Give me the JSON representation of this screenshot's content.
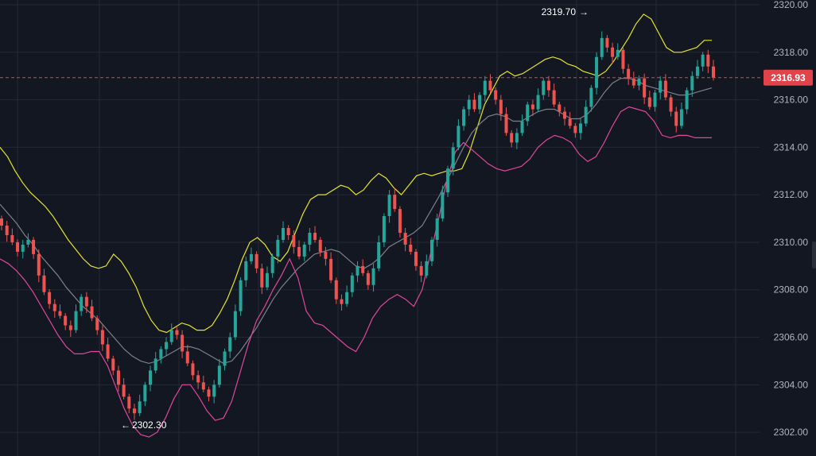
{
  "chart_data": {
    "type": "candlestick",
    "title": "",
    "xlabel": "",
    "ylabel": "",
    "ylim": [
      2301.0,
      2320.2
    ],
    "y_ticks": [
      "2320.00",
      "2318.00",
      "2316.00",
      "2314.00",
      "2312.00",
      "2310.00",
      "2308.00",
      "2306.00",
      "2304.00",
      "2302.00"
    ],
    "y_tick_values": [
      2320,
      2318,
      2316,
      2314,
      2312,
      2310,
      2308,
      2306,
      2304,
      2302
    ],
    "current_price": 2316.93,
    "current_price_label": "2316.93",
    "annotations": [
      {
        "label": "2319.70",
        "value": 2319.7,
        "arrow": "→",
        "side": "left"
      },
      {
        "label": "2302.30",
        "value": 2302.3,
        "arrow": "←",
        "side": "right"
      }
    ],
    "candles_close": [
      2310.7,
      2310.3,
      2310.0,
      2309.6,
      2309.9,
      2310.1,
      2309.5,
      2308.6,
      2307.9,
      2307.4,
      2307.1,
      2306.9,
      2306.5,
      2306.3,
      2307.1,
      2307.7,
      2307.3,
      2306.8,
      2306.3,
      2305.7,
      2305.1,
      2304.6,
      2304.0,
      2303.5,
      2303.0,
      2302.8,
      2303.3,
      2304.0,
      2304.6,
      2305.1,
      2305.5,
      2305.8,
      2306.3,
      2306.1,
      2305.4,
      2304.9,
      2304.4,
      2304.1,
      2303.8,
      2303.5,
      2304.0,
      2304.8,
      2305.4,
      2306.0,
      2307.1,
      2308.4,
      2309.2,
      2309.5,
      2308.9,
      2308.1,
      2308.7,
      2309.4,
      2310.1,
      2310.6,
      2310.3,
      2309.8,
      2309.4,
      2309.9,
      2310.4,
      2310.1,
      2309.6,
      2309.3,
      2308.4,
      2307.6,
      2307.4,
      2307.9,
      2308.6,
      2309.0,
      2308.7,
      2308.2,
      2308.9,
      2310.0,
      2311.1,
      2312.0,
      2311.4,
      2310.4,
      2309.9,
      2309.6,
      2309.0,
      2308.6,
      2309.2,
      2310.1,
      2311.0,
      2312.1,
      2313.1,
      2314.0,
      2314.9,
      2315.6,
      2316.0,
      2315.6,
      2316.2,
      2316.8,
      2316.4,
      2316.0,
      2315.4,
      2314.6,
      2314.2,
      2314.6,
      2315.1,
      2315.8,
      2315.6,
      2316.2,
      2316.8,
      2316.4,
      2315.8,
      2315.5,
      2315.2,
      2314.9,
      2314.6,
      2315.0,
      2315.7,
      2316.5,
      2317.8,
      2318.6,
      2318.2,
      2317.8,
      2318.1,
      2317.3,
      2316.9,
      2316.6,
      2316.9,
      2316.1,
      2315.7,
      2316.3,
      2316.8,
      2316.1,
      2315.5,
      2314.9,
      2315.6,
      2316.4,
      2317.0,
      2317.4,
      2317.9,
      2317.4,
      2316.93
    ],
    "bollinger_upper": [
      2314.0,
      2313.6,
      2313.0,
      2312.5,
      2312.1,
      2311.8,
      2311.5,
      2311.1,
      2310.6,
      2310.1,
      2309.7,
      2309.3,
      2309.0,
      2308.9,
      2309.0,
      2309.5,
      2309.2,
      2308.7,
      2308.1,
      2307.3,
      2306.7,
      2306.3,
      2306.2,
      2306.4,
      2306.6,
      2306.5,
      2306.3,
      2306.3,
      2306.5,
      2307.0,
      2307.6,
      2308.4,
      2309.3,
      2310.0,
      2310.2,
      2309.9,
      2309.4,
      2309.2,
      2309.6,
      2310.4,
      2311.2,
      2311.8,
      2312.0,
      2312.0,
      2312.2,
      2312.4,
      2312.3,
      2312.0,
      2312.2,
      2312.6,
      2312.9,
      2312.7,
      2312.3,
      2312.0,
      2312.4,
      2312.8,
      2312.9,
      2312.8,
      2312.9,
      2313.0,
      2313.0,
      2313.1,
      2313.8,
      2314.8,
      2315.8,
      2316.4,
      2317.0,
      2317.2,
      2317.0,
      2317.1,
      2317.3,
      2317.5,
      2317.7,
      2317.8,
      2317.7,
      2317.5,
      2317.4,
      2317.2,
      2317.1,
      2317.0,
      2317.2,
      2317.6,
      2318.1,
      2318.6,
      2319.2,
      2319.6,
      2319.4,
      2318.8,
      2318.2,
      2318.0,
      2318.0,
      2318.1,
      2318.2,
      2318.5,
      2318.5
    ],
    "bollinger_mid": [
      2311.6,
      2311.2,
      2310.8,
      2310.3,
      2309.9,
      2309.4,
      2309.0,
      2308.6,
      2308.1,
      2307.7,
      2307.3,
      2307.0,
      2306.7,
      2306.3,
      2305.9,
      2305.5,
      2305.2,
      2305.0,
      2304.9,
      2305.0,
      2305.2,
      2305.4,
      2305.6,
      2305.6,
      2305.5,
      2305.3,
      2305.1,
      2304.9,
      2305.0,
      2305.4,
      2305.9,
      2306.4,
      2307.0,
      2307.6,
      2308.1,
      2308.5,
      2308.9,
      2309.2,
      2309.5,
      2309.6,
      2309.7,
      2309.6,
      2309.3,
      2309.0,
      2308.9,
      2309.1,
      2309.4,
      2309.8,
      2310.0,
      2310.2,
      2310.4,
      2310.7,
      2311.3,
      2311.9,
      2312.6,
      2313.3,
      2314.0,
      2314.6,
      2315.0,
      2315.3,
      2315.4,
      2315.3,
      2315.1,
      2315.1,
      2315.3,
      2315.5,
      2315.6,
      2315.6,
      2315.4,
      2315.2,
      2315.2,
      2315.4,
      2315.8,
      2316.3,
      2316.7,
      2316.9,
      2316.9,
      2316.8,
      2316.6,
      2316.5,
      2316.4,
      2316.3,
      2316.2,
      2316.2,
      2316.3,
      2316.4,
      2316.5
    ],
    "bollinger_lower": [
      2309.3,
      2309.1,
      2308.8,
      2308.4,
      2307.9,
      2307.3,
      2306.7,
      2306.1,
      2305.6,
      2305.3,
      2305.3,
      2305.4,
      2305.4,
      2304.8,
      2303.9,
      2303.0,
      2302.3,
      2301.9,
      2301.8,
      2302.0,
      2302.6,
      2303.4,
      2304.0,
      2304.0,
      2303.5,
      2302.9,
      2302.5,
      2302.6,
      2303.3,
      2304.5,
      2305.7,
      2306.7,
      2307.3,
      2308.0,
      2308.6,
      2309.3,
      2308.5,
      2307.1,
      2306.6,
      2306.5,
      2306.2,
      2305.9,
      2305.6,
      2305.4,
      2306.0,
      2306.8,
      2307.3,
      2307.6,
      2307.8,
      2307.6,
      2307.3,
      2308.0,
      2309.5,
      2311.0,
      2312.6,
      2313.8,
      2314.2,
      2313.9,
      2313.6,
      2313.3,
      2313.1,
      2313.0,
      2313.1,
      2313.2,
      2313.5,
      2314.0,
      2314.3,
      2314.5,
      2314.4,
      2314.2,
      2313.7,
      2313.4,
      2313.6,
      2314.2,
      2314.9,
      2315.5,
      2315.7,
      2315.6,
      2315.5,
      2315.1,
      2314.5,
      2314.4,
      2314.5,
      2314.5,
      2314.4,
      2314.4,
      2314.4
    ]
  },
  "colors": {
    "background": "#131722",
    "grid": "#232836",
    "axis_text": "#b2b5be",
    "candle_up": "#26a69a",
    "candle_down": "#ef5350",
    "band_upper": "#e6e42a",
    "band_middle": "#7d808a",
    "band_lower": "#e0479c",
    "current_price_line": "#e0444a",
    "current_price_tag": "#e0444a"
  }
}
